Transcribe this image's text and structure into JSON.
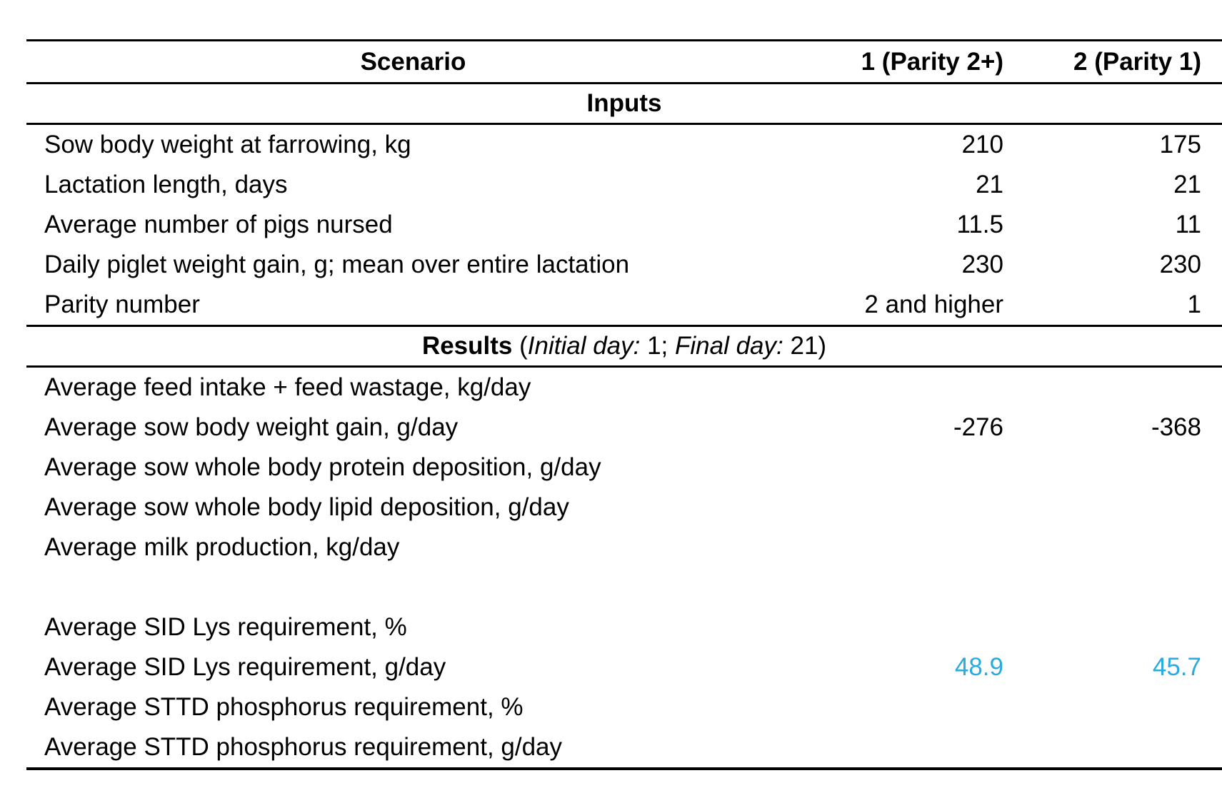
{
  "accent_color": "#29ABE2",
  "table": {
    "header": {
      "scenario": "Scenario",
      "col1": "1 (Parity 2+)",
      "col2": "2 (Parity 1)"
    },
    "inputs_title": "Inputs",
    "results_title": "Results",
    "results_subtitle": {
      "open": " (",
      "initial_label": "Initial day:",
      "after_initial": " 1; ",
      "final_label": "Final day:",
      "after_final": " 21)"
    },
    "input_rows": [
      {
        "label": "Sow body weight at farrowing, kg",
        "v1": "210",
        "v2": "175"
      },
      {
        "label": "Lactation length, days",
        "v1": "21",
        "v2": "21"
      },
      {
        "label": "Average number of pigs nursed",
        "v1": "11.5",
        "v2": "11"
      },
      {
        "label": "Daily piglet weight gain, g; mean over entire lactation",
        "v1": "230",
        "v2": "230"
      },
      {
        "label": "Parity number",
        "v1": "2 and higher",
        "v2": "1"
      }
    ],
    "result_rows": [
      {
        "label": "Average feed intake + feed wastage, kg/day",
        "v1": "",
        "v2": ""
      },
      {
        "label": "Average sow body weight gain, g/day",
        "v1": "-276",
        "v2": "-368"
      },
      {
        "label": "Average sow whole body protein deposition, g/day",
        "v1": "",
        "v2": ""
      },
      {
        "label": "Average sow whole body lipid deposition, g/day",
        "v1": "",
        "v2": ""
      },
      {
        "label": "Average milk production, kg/day",
        "v1": "",
        "v2": ""
      },
      {
        "label": "",
        "v1": "",
        "v2": ""
      },
      {
        "label": "Average SID Lys requirement, %",
        "v1": "",
        "v2": ""
      },
      {
        "label": "Average SID Lys requirement, g/day",
        "v1": "48.9",
        "v2": "45.7"
      },
      {
        "label": "Average STTD phosphorus requirement, %",
        "v1": "",
        "v2": ""
      },
      {
        "label": "Average STTD phosphorus requirement, g/day",
        "v1": "",
        "v2": ""
      }
    ]
  }
}
